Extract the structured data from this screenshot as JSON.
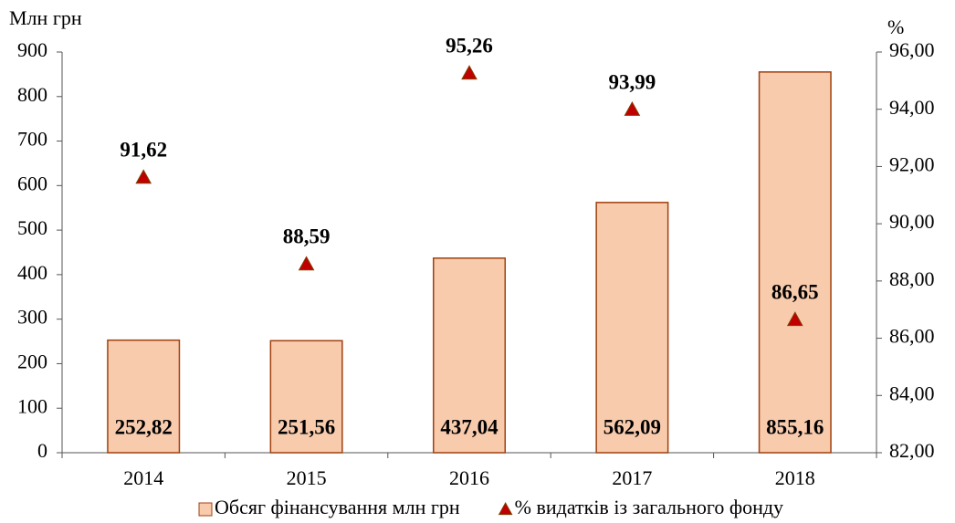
{
  "chart_data": {
    "type": "bar",
    "ylabel": "Млн грн",
    "y2label": "%",
    "categories": [
      "2014",
      "2015",
      "2016",
      "2017",
      "2018"
    ],
    "ylim": [
      0,
      900
    ],
    "yticks": [
      0,
      100,
      200,
      300,
      400,
      500,
      600,
      700,
      800,
      900
    ],
    "y2lim": [
      82,
      96
    ],
    "y2ticks": [
      {
        "value": 82,
        "label": "82,00"
      },
      {
        "value": 84,
        "label": "84,00"
      },
      {
        "value": 86,
        "label": "86,00"
      },
      {
        "value": 88,
        "label": "88,00"
      },
      {
        "value": 90,
        "label": "90,00"
      },
      {
        "value": 92,
        "label": "92,00"
      },
      {
        "value": 94,
        "label": "94,00"
      },
      {
        "value": 96,
        "label": "96,00"
      }
    ],
    "grid": false,
    "legend": "bottom",
    "series": [
      {
        "name": "Обсяг фінансування млн грн",
        "type": "bar",
        "color": "#f8cbad",
        "edgecolor": "#a0400f",
        "values": [
          252.82,
          251.56,
          437.04,
          562.09,
          855.16
        ],
        "value_labels": [
          "252,82",
          "251,56",
          "437,04",
          "562,09",
          "855,16"
        ]
      },
      {
        "name": "% видатків із загального фонду",
        "type": "scatter",
        "marker": "triangle",
        "axis": "y2",
        "color": "#c00000",
        "edgecolor": "#7f3f00",
        "values": [
          91.62,
          88.59,
          95.26,
          93.99,
          86.65
        ],
        "value_labels": [
          "91,62",
          "88,59",
          "95,26",
          "93,99",
          "86,65"
        ]
      }
    ]
  }
}
